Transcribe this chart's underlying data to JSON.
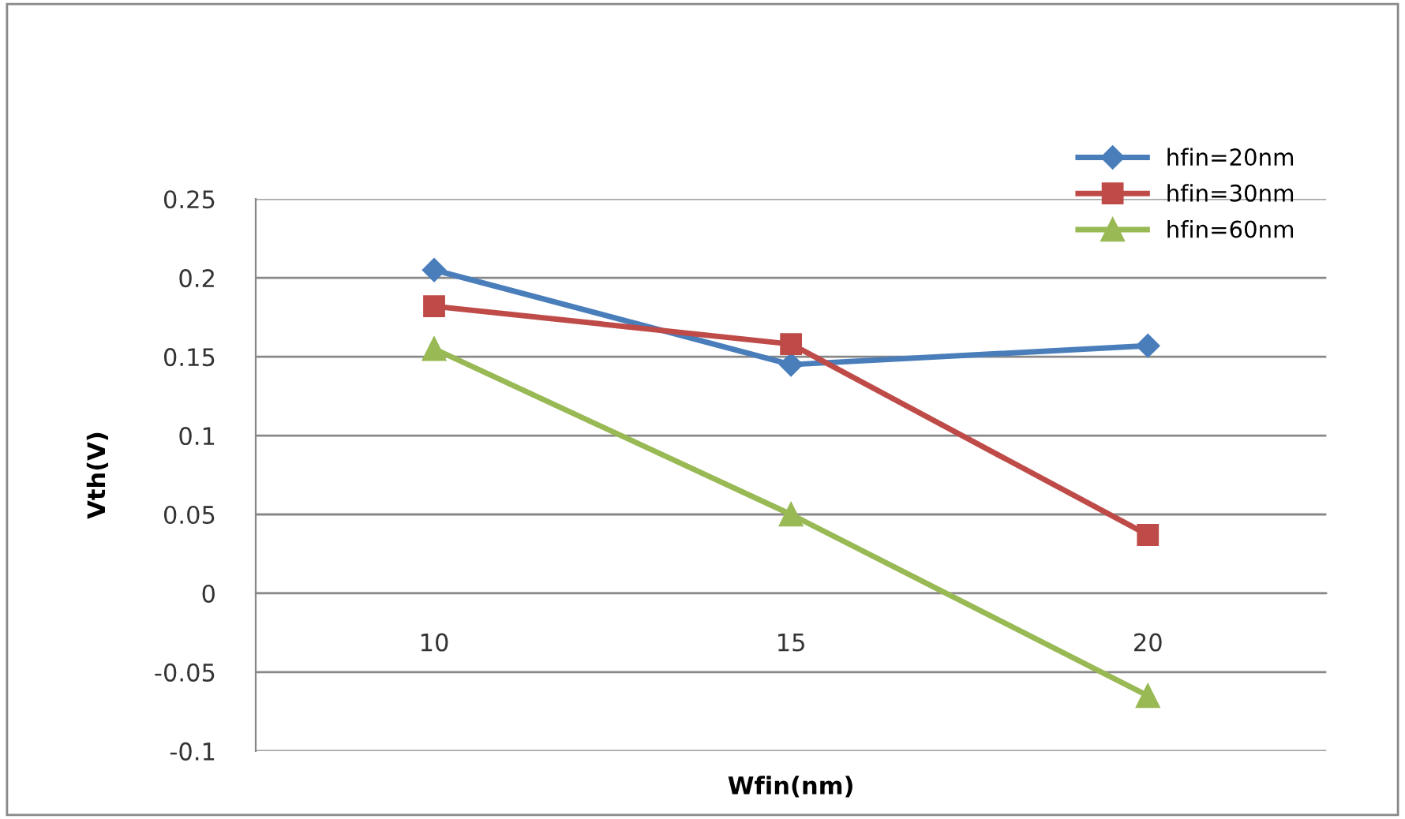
{
  "chart_data": {
    "type": "line",
    "xlabel": "Wfin(nm)",
    "ylabel": "Vth(V)",
    "categories": [
      "10",
      "15",
      "20"
    ],
    "series": [
      {
        "name": "hfin=20nm",
        "color": "#4a7ebb",
        "marker": "diamond",
        "values": [
          0.205,
          0.145,
          0.157
        ]
      },
      {
        "name": "hfin=30nm",
        "color": "#be4b48",
        "marker": "square",
        "values": [
          0.182,
          0.158,
          0.037
        ]
      },
      {
        "name": "hfin=60nm",
        "color": "#98b954",
        "marker": "triangle",
        "values": [
          0.155,
          0.05,
          -0.065
        ]
      }
    ],
    "ylim": [
      -0.1,
      0.25
    ],
    "yticks": [
      -0.1,
      -0.05,
      0,
      0.05,
      0.1,
      0.15,
      0.2,
      0.25
    ],
    "grid": "y",
    "legend": "top right",
    "line_style": "solid"
  }
}
